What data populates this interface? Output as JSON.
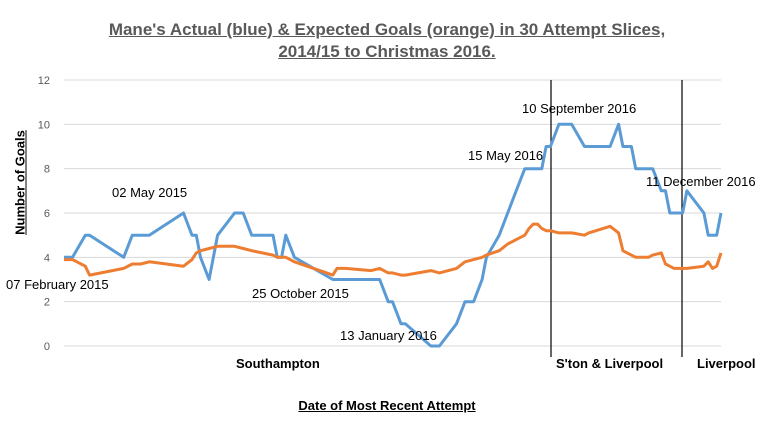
{
  "title_line1": "Mane's Actual (blue) & Expected Goals (orange) in 30 Attempt Slices,",
  "title_line2": "2014/15 to Christmas 2016.",
  "chart_data": {
    "type": "line",
    "title": "Mane's Actual (blue) & Expected Goals (orange) in 30 Attempt Slices, 2014/15 to Christmas 2016.",
    "xlabel": "Date of Most Recent Attempt",
    "ylabel": "Number of Goals",
    "ylim": [
      0,
      12
    ],
    "yticks": [
      0,
      2,
      4,
      6,
      8,
      10,
      12
    ],
    "grid": true,
    "x": [
      0,
      2,
      5,
      6,
      14,
      16,
      18,
      20,
      28,
      30,
      31,
      32,
      34,
      36,
      40,
      42,
      44,
      49,
      50,
      51,
      52,
      54,
      63,
      64,
      66,
      72,
      74,
      76,
      77,
      79,
      80,
      86,
      88,
      92,
      94,
      96,
      98,
      99,
      102,
      104,
      106,
      108,
      109,
      110,
      111,
      112,
      113,
      114,
      116,
      118,
      119,
      122,
      123,
      128,
      130,
      131,
      132,
      133,
      134,
      136,
      137,
      138,
      140,
      141,
      142,
      143,
      144,
      145,
      146,
      150,
      151,
      152,
      153,
      154
    ],
    "series": [
      {
        "color": "#5b9bd5",
        "values": [
          4,
          4,
          5,
          5,
          4,
          5,
          5,
          5,
          6,
          5,
          5,
          4,
          3,
          5,
          6,
          6,
          5,
          5,
          4,
          4,
          5,
          4,
          3,
          3,
          3,
          3,
          3,
          2,
          2,
          1,
          1,
          0,
          0,
          1,
          2,
          2,
          3,
          4,
          5,
          6,
          7,
          8,
          8,
          8,
          8,
          8,
          9,
          9,
          10,
          10,
          10,
          9,
          9,
          9,
          10,
          9,
          9,
          9,
          8,
          8,
          8,
          8,
          7,
          7,
          6,
          6,
          6,
          6,
          7,
          6,
          5,
          5,
          5,
          6
        ]
      },
      {
        "color": "#ed7d31",
        "values": [
          3.9,
          3.9,
          3.6,
          3.2,
          3.5,
          3.7,
          3.7,
          3.8,
          3.6,
          3.9,
          4.2,
          4.3,
          4.4,
          4.5,
          4.5,
          4.4,
          4.3,
          4.1,
          4.0,
          4.0,
          4.0,
          3.8,
          3.2,
          3.5,
          3.5,
          3.4,
          3.5,
          3.3,
          3.3,
          3.2,
          3.2,
          3.4,
          3.3,
          3.5,
          3.8,
          3.9,
          4.0,
          4.1,
          4.3,
          4.6,
          4.8,
          5.0,
          5.3,
          5.5,
          5.5,
          5.3,
          5.2,
          5.2,
          5.1,
          5.1,
          5.1,
          5.0,
          5.1,
          5.4,
          5.1,
          4.3,
          4.2,
          4.1,
          4.0,
          4.0,
          4.0,
          4.1,
          4.2,
          3.7,
          3.6,
          3.5,
          3.5,
          3.5,
          3.5,
          3.6,
          3.8,
          3.5,
          3.6,
          4.2
        ]
      }
    ]
  },
  "annotations": {
    "a1": "07 February 2015",
    "a2": "02 May 2015",
    "a3": "25 October 2015",
    "a4": "13 January 2016",
    "a5": "15 May 2016",
    "a6": "10 September 2016",
    "a7": "11 December 2016"
  },
  "periods": {
    "p1": "Southampton",
    "p2": "S'ton & Liverpool",
    "p3": "Liverpool"
  }
}
